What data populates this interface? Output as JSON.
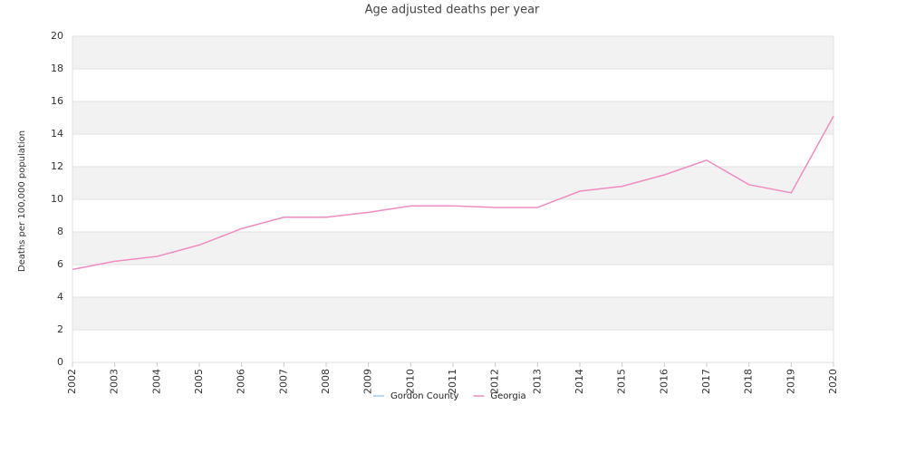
{
  "chart_data": {
    "type": "line",
    "title": "Age adjusted deaths per year",
    "y_label": "Deaths per 100,000 population",
    "x": [
      2002,
      2003,
      2004,
      2005,
      2006,
      2007,
      2008,
      2009,
      2010,
      2011,
      2012,
      2013,
      2014,
      2015,
      2016,
      2017,
      2018,
      2019,
      2020
    ],
    "series": [
      {
        "name": "Gordon County",
        "color": "#a8cbea",
        "values": [
          null,
          null,
          null,
          null,
          null,
          null,
          null,
          null,
          null,
          null,
          null,
          null,
          null,
          null,
          null,
          null,
          null,
          null,
          null
        ]
      },
      {
        "name": "Georgia",
        "color": "#f08cc0",
        "values": [
          5.7,
          6.2,
          6.5,
          7.2,
          8.2,
          8.9,
          8.9,
          9.2,
          9.6,
          9.6,
          9.5,
          9.5,
          10.5,
          10.8,
          11.5,
          12.4,
          10.9,
          10.4,
          15.1
        ]
      }
    ],
    "xlim": [
      2002,
      2020
    ],
    "xticks": [
      2002,
      2003,
      2004,
      2005,
      2006,
      2007,
      2008,
      2009,
      2010,
      2011,
      2012,
      2013,
      2014,
      2015,
      2016,
      2017,
      2018,
      2019,
      2020
    ],
    "ylim": [
      0,
      20
    ],
    "yticks": [
      0,
      2,
      4,
      6,
      8,
      10,
      12,
      14,
      16,
      18,
      20
    ],
    "grid": true,
    "legend": "bottom"
  }
}
